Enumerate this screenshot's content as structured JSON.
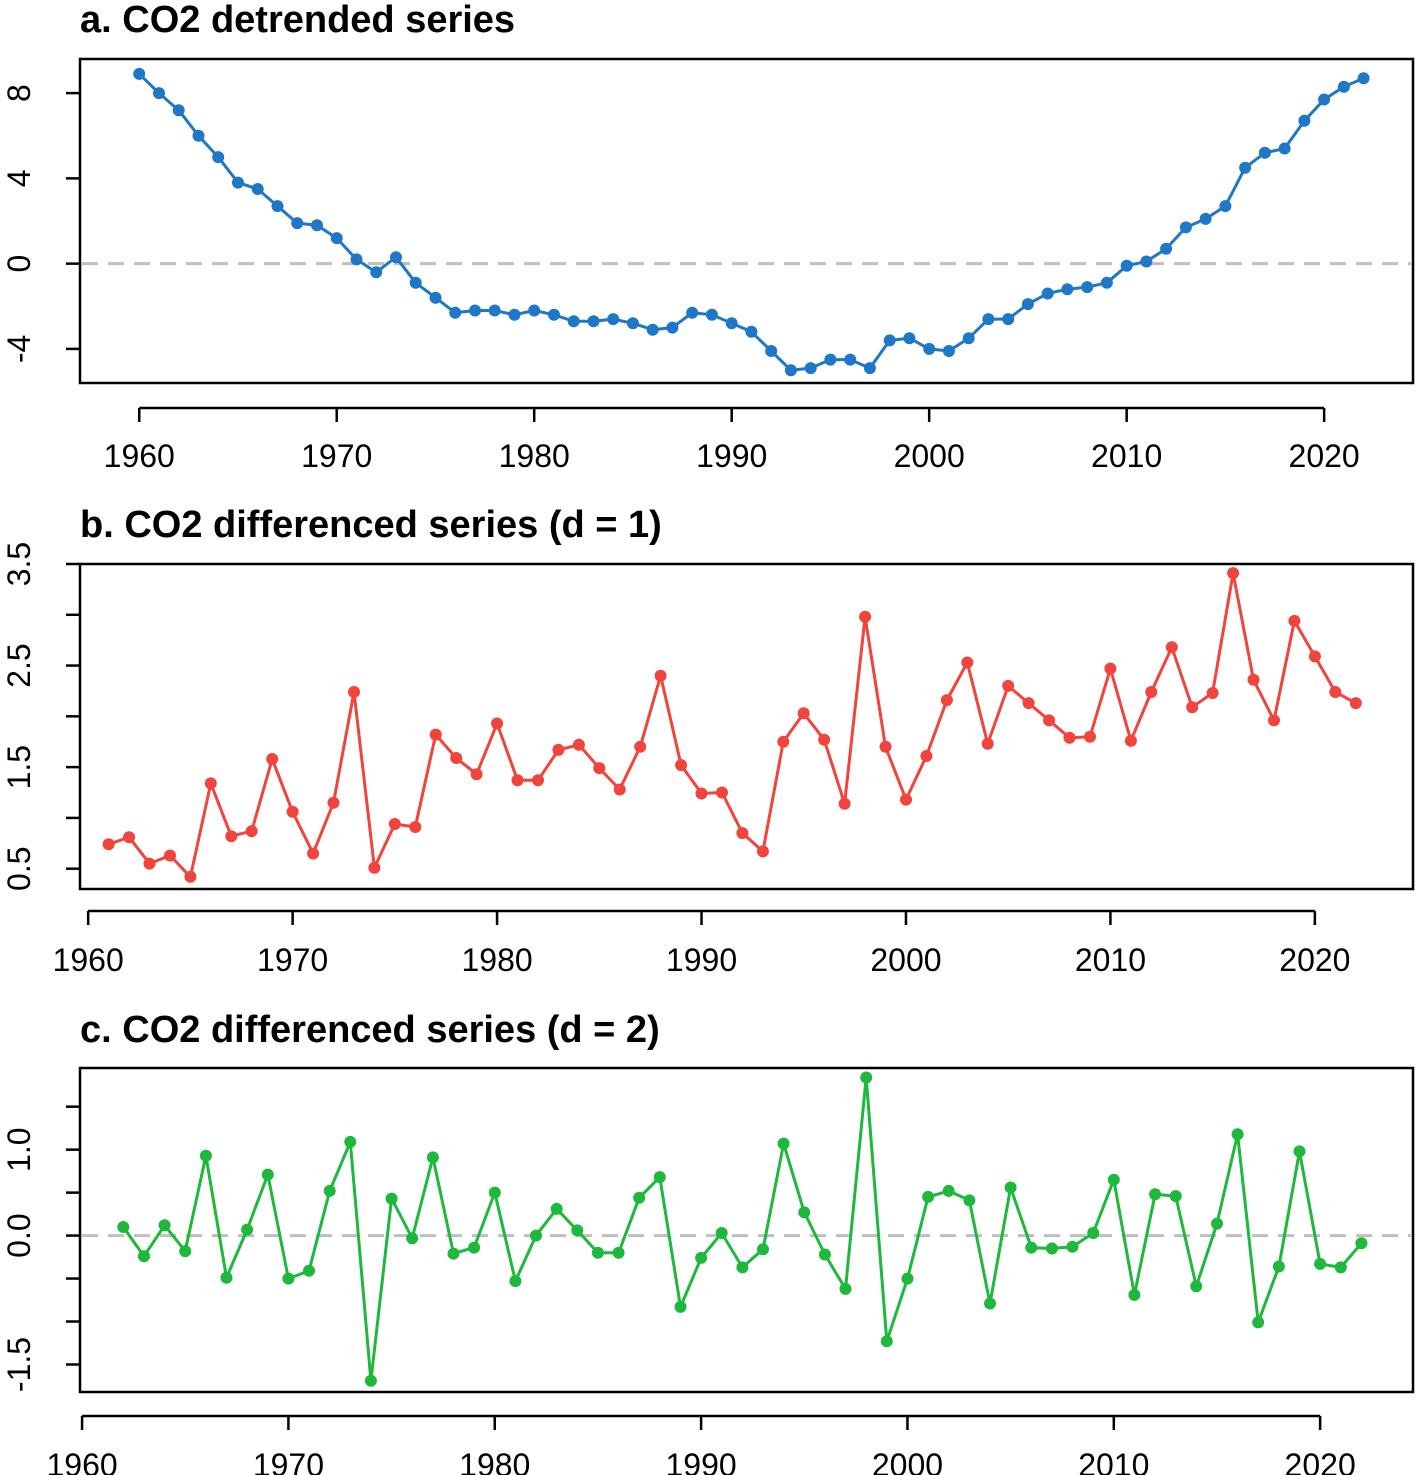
{
  "chart_data": [
    {
      "type": "line",
      "title": "a. CO2 detrended series",
      "xlabel": "",
      "ylabel": "",
      "xlim": [
        1957,
        2024.5
      ],
      "ylim": [
        -5.6,
        9.6
      ],
      "xticks": [
        1960,
        1970,
        1980,
        1990,
        2000,
        2010,
        2020
      ],
      "yticks": [
        -4,
        0,
        4,
        8
      ],
      "ytick_labels": [
        "-4",
        "0",
        "4",
        "8"
      ],
      "reference_line": 0,
      "series": [
        {
          "color": "#1f77c8",
          "x": [
            1960,
            1961,
            1962,
            1963,
            1964,
            1965,
            1966,
            1967,
            1968,
            1969,
            1970,
            1971,
            1972,
            1973,
            1974,
            1975,
            1976,
            1977,
            1978,
            1979,
            1980,
            1981,
            1982,
            1983,
            1984,
            1985,
            1986,
            1987,
            1988,
            1989,
            1990,
            1991,
            1992,
            1993,
            1994,
            1995,
            1996,
            1997,
            1998,
            1999,
            2000,
            2001,
            2002,
            2003,
            2004,
            2005,
            2006,
            2007,
            2008,
            2009,
            2010,
            2011,
            2012,
            2013,
            2014,
            2015,
            2016,
            2017,
            2018,
            2019,
            2020,
            2021,
            2022
          ],
          "values": [
            8.9,
            8.0,
            7.2,
            6.0,
            5.0,
            3.8,
            3.5,
            2.7,
            1.9,
            1.8,
            1.2,
            0.2,
            -0.4,
            0.3,
            -0.9,
            -1.6,
            -2.3,
            -2.2,
            -2.2,
            -2.4,
            -2.2,
            -2.4,
            -2.7,
            -2.7,
            -2.6,
            -2.8,
            -3.1,
            -3.0,
            -2.3,
            -2.4,
            -2.8,
            -3.2,
            -4.1,
            -5.0,
            -4.9,
            -4.5,
            -4.5,
            -4.9,
            -3.6,
            -3.5,
            -4.0,
            -4.1,
            -3.5,
            -2.6,
            -2.6,
            -1.9,
            -1.4,
            -1.2,
            -1.1,
            -0.9,
            -0.1,
            0.1,
            0.7,
            1.7,
            2.1,
            2.7,
            4.5,
            5.2,
            5.4,
            6.7,
            7.7,
            8.3,
            8.7
          ]
        }
      ]
    },
    {
      "type": "line",
      "title": "b. CO2 differenced series (d = 1)",
      "xlabel": "",
      "ylabel": "",
      "xlim": [
        1959.6,
        2024.8
      ],
      "ylim": [
        0.3,
        3.5
      ],
      "xticks": [
        1960,
        1970,
        1980,
        1990,
        2000,
        2010,
        2020
      ],
      "yticks": [
        0.5,
        1.5,
        2.5,
        3.5
      ],
      "ytick_labels": [
        "0.5",
        "1.5",
        "2.5",
        "3.5"
      ],
      "minor_yticks": [
        1.0,
        2.0,
        3.0
      ],
      "series": [
        {
          "color": "#f0443c",
          "x": [
            1961,
            1962,
            1963,
            1964,
            1965,
            1966,
            1967,
            1968,
            1969,
            1970,
            1971,
            1972,
            1973,
            1974,
            1975,
            1976,
            1977,
            1978,
            1979,
            1980,
            1981,
            1982,
            1983,
            1984,
            1985,
            1986,
            1987,
            1988,
            1989,
            1990,
            1991,
            1992,
            1993,
            1994,
            1995,
            1996,
            1997,
            1998,
            1999,
            2000,
            2001,
            2002,
            2003,
            2004,
            2005,
            2006,
            2007,
            2008,
            2009,
            2010,
            2011,
            2012,
            2013,
            2014,
            2015,
            2016,
            2017,
            2018,
            2019,
            2020,
            2021,
            2022
          ],
          "values": [
            0.74,
            0.81,
            0.55,
            0.63,
            0.42,
            1.34,
            0.82,
            0.87,
            1.58,
            1.06,
            0.65,
            1.15,
            2.24,
            0.51,
            0.94,
            0.91,
            1.82,
            1.59,
            1.43,
            1.93,
            1.37,
            1.37,
            1.67,
            1.72,
            1.49,
            1.28,
            1.7,
            2.4,
            1.52,
            1.24,
            1.25,
            0.85,
            0.67,
            1.75,
            2.03,
            1.77,
            1.14,
            2.98,
            1.7,
            1.18,
            1.61,
            2.16,
            2.53,
            1.73,
            2.3,
            2.13,
            1.96,
            1.79,
            1.8,
            2.47,
            1.76,
            2.24,
            2.68,
            2.09,
            2.23,
            3.41,
            2.36,
            1.96,
            2.94,
            2.59,
            2.24,
            2.13
          ]
        }
      ]
    },
    {
      "type": "line",
      "title": "c. CO2 differenced series (d = 2)",
      "xlabel": "",
      "ylabel": "",
      "xlim": [
        1959.9,
        2024.5
      ],
      "ylim": [
        -1.82,
        1.95
      ],
      "xticks": [
        1960,
        1970,
        1980,
        1990,
        2000,
        2010,
        2020
      ],
      "yticks": [
        -1.5,
        0.0,
        1.0
      ],
      "ytick_labels": [
        "-1.5",
        "0.0",
        "1.0"
      ],
      "minor_yticks": [
        -1.0,
        -0.5,
        0.5,
        1.5
      ],
      "reference_line": 0,
      "series": [
        {
          "color": "#1db83c",
          "x": [
            1962,
            1963,
            1964,
            1965,
            1966,
            1967,
            1968,
            1969,
            1970,
            1971,
            1972,
            1973,
            1974,
            1975,
            1976,
            1977,
            1978,
            1979,
            1980,
            1981,
            1982,
            1983,
            1984,
            1985,
            1986,
            1987,
            1988,
            1989,
            1990,
            1991,
            1992,
            1993,
            1994,
            1995,
            1996,
            1997,
            1998,
            1999,
            2000,
            2001,
            2002,
            2003,
            2004,
            2005,
            2006,
            2007,
            2008,
            2009,
            2010,
            2011,
            2012,
            2013,
            2014,
            2015,
            2016,
            2017,
            2018,
            2019,
            2020,
            2021,
            2022
          ],
          "values": [
            0.1,
            -0.24,
            0.12,
            -0.18,
            0.93,
            -0.49,
            0.07,
            0.71,
            -0.5,
            -0.41,
            0.52,
            1.09,
            -1.69,
            0.43,
            -0.03,
            0.91,
            -0.21,
            -0.14,
            0.5,
            -0.53,
            0.0,
            0.31,
            0.06,
            -0.2,
            -0.2,
            0.44,
            0.68,
            -0.83,
            -0.26,
            0.03,
            -0.37,
            -0.16,
            1.07,
            0.27,
            -0.22,
            -0.62,
            1.84,
            -1.23,
            -0.5,
            0.45,
            0.52,
            0.41,
            -0.79,
            0.56,
            -0.14,
            -0.15,
            -0.13,
            0.03,
            0.65,
            -0.69,
            0.48,
            0.46,
            -0.59,
            0.14,
            1.18,
            -1.01,
            -0.36,
            0.98,
            -0.33,
            -0.37,
            -0.09
          ]
        }
      ]
    }
  ]
}
